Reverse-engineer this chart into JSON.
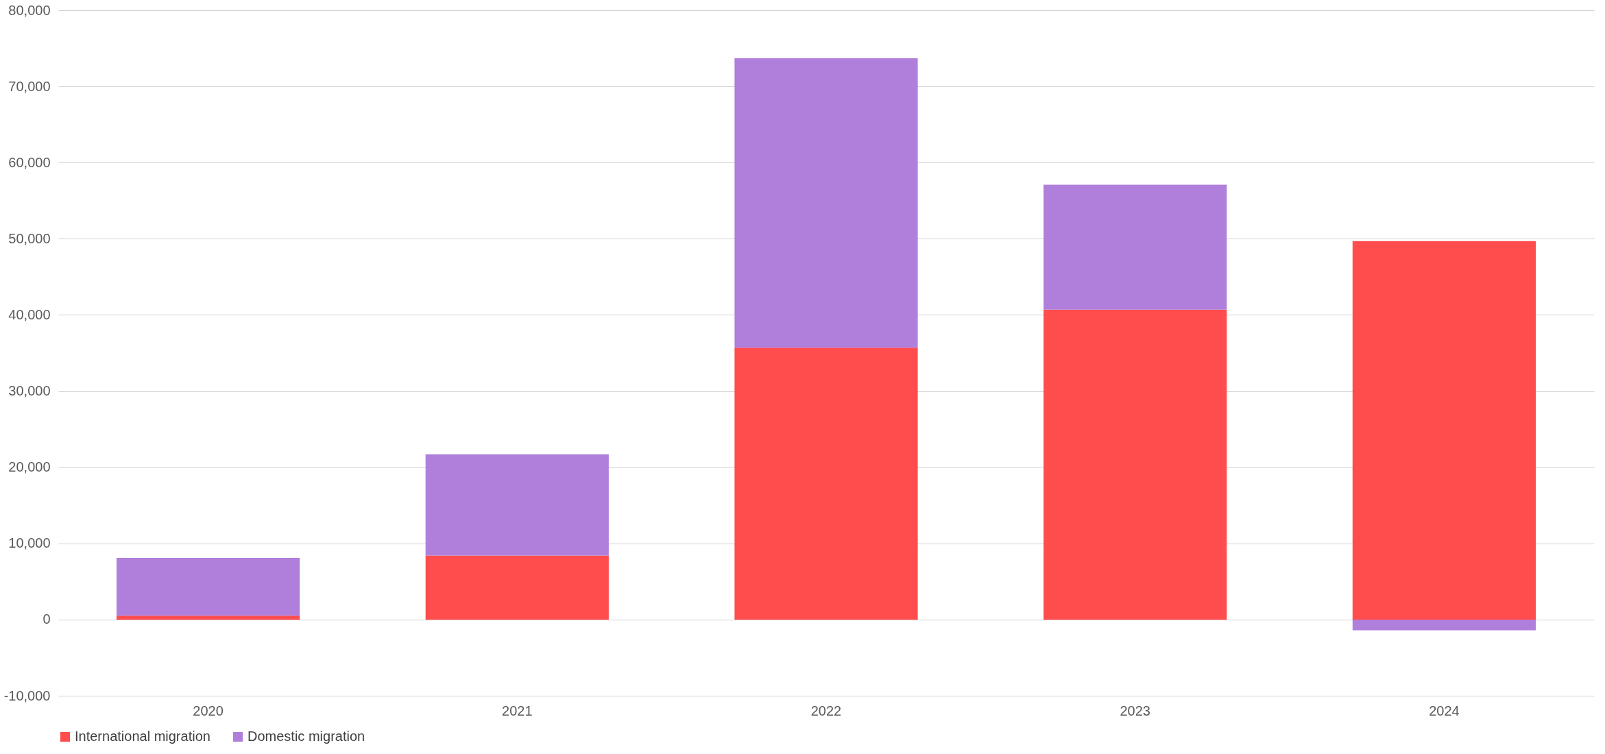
{
  "chart_data": {
    "type": "bar",
    "stacked": true,
    "categories": [
      "2020",
      "2021",
      "2022",
      "2023",
      "2024"
    ],
    "series": [
      {
        "name": "International migration",
        "color": "#ff4c4c",
        "values": [
          500,
          8400,
          35700,
          40700,
          49700
        ]
      },
      {
        "name": "Domestic migration",
        "color": "#b07fdc",
        "values": [
          7600,
          13300,
          38000,
          16400,
          -1400
        ]
      }
    ],
    "ylim": [
      -10000,
      80000
    ],
    "yticks": [
      {
        "value": -10000,
        "label": "-10,000"
      },
      0,
      {
        "value": 10000,
        "label": "10,000"
      },
      {
        "value": 20000,
        "label": "20,000"
      },
      {
        "value": 30000,
        "label": "30,000"
      },
      {
        "value": 40000,
        "label": "40,000"
      },
      {
        "value": 50000,
        "label": "50,000"
      },
      {
        "value": 60000,
        "label": "60,000"
      },
      {
        "value": 70000,
        "label": "70,000"
      },
      {
        "value": 80000,
        "label": "80,000"
      }
    ],
    "grid": "y",
    "legend": "bottom"
  }
}
